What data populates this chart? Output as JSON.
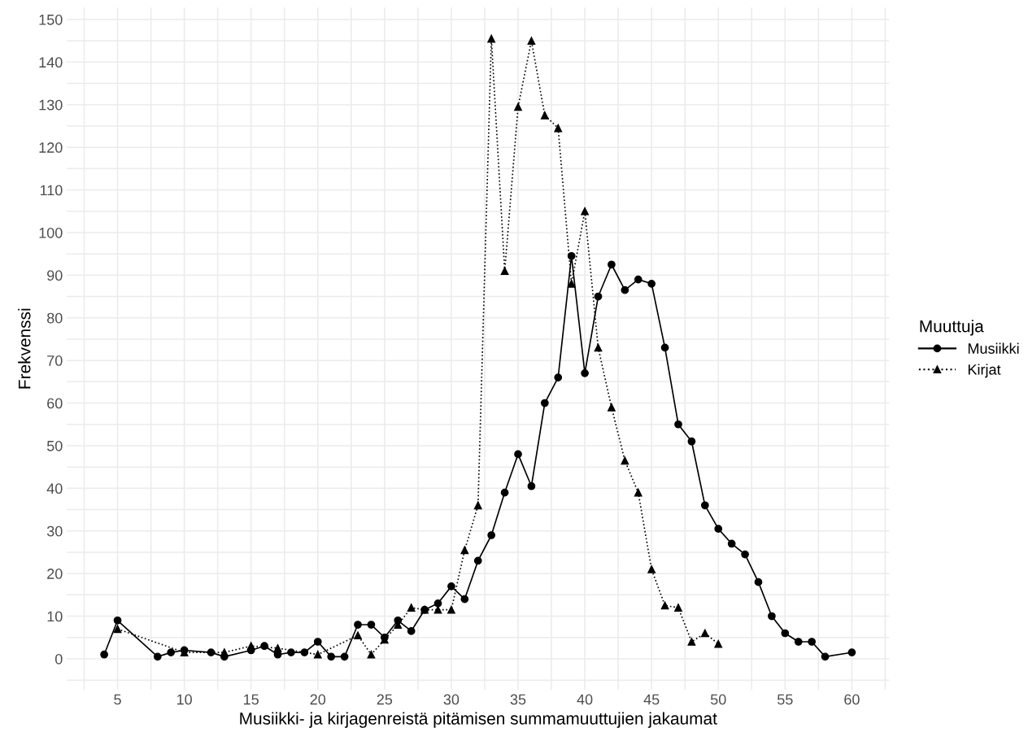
{
  "chart_data": {
    "type": "line",
    "xlabel": "Musiikki- ja kirjagenreistä pitämisen summamuuttujien jakaumat",
    "ylabel": "Frekvenssi",
    "legend_title": "Muuttuja",
    "legend": "right",
    "grid": true,
    "xlim": [
      1.2,
      62.8
    ],
    "ylim": [
      -7.3,
      152.8
    ],
    "xticks": [
      {
        "value": 2.5,
        "label": null
      },
      5,
      {
        "value": 7.5,
        "label": null
      },
      10,
      {
        "value": 12.5,
        "label": null
      },
      15,
      {
        "value": 17.5,
        "label": null
      },
      20,
      {
        "value": 22.5,
        "label": null
      },
      25,
      {
        "value": 27.5,
        "label": null
      },
      30,
      {
        "value": 32.5,
        "label": null
      },
      35,
      {
        "value": 37.5,
        "label": null
      },
      40,
      {
        "value": 42.5,
        "label": null
      },
      45,
      {
        "value": 47.5,
        "label": null
      },
      50,
      {
        "value": 52.5,
        "label": null
      },
      55,
      {
        "value": 57.5,
        "label": null
      },
      60,
      {
        "value": 62.5,
        "label": null
      }
    ],
    "yticks": [
      {
        "value": -5,
        "label": null
      },
      0,
      {
        "value": 5,
        "label": null
      },
      10,
      {
        "value": 15,
        "label": null
      },
      20,
      {
        "value": 25,
        "label": null
      },
      30,
      {
        "value": 35,
        "label": null
      },
      40,
      {
        "value": 45,
        "label": null
      },
      50,
      {
        "value": 55,
        "label": null
      },
      60,
      {
        "value": 65,
        "label": null
      },
      70,
      {
        "value": 75,
        "label": null
      },
      80,
      {
        "value": 85,
        "label": null
      },
      90,
      {
        "value": 95,
        "label": null
      },
      100,
      {
        "value": 105,
        "label": null
      },
      110,
      {
        "value": 115,
        "label": null
      },
      120,
      {
        "value": 125,
        "label": null
      },
      130,
      {
        "value": 135,
        "label": null
      },
      140,
      {
        "value": 145,
        "label": null
      },
      150
    ],
    "series": [
      {
        "name": "Musiikki",
        "color": "#000000",
        "marker": "circle",
        "line_style": "solid",
        "x": [
          4,
          5,
          8,
          9,
          10,
          12,
          13,
          15,
          16,
          17,
          18,
          19,
          20,
          21,
          22,
          23,
          24,
          25,
          26,
          27,
          28,
          29,
          30,
          31,
          32,
          33,
          34,
          35,
          36,
          37,
          38,
          39,
          40,
          41,
          42,
          43,
          44,
          45,
          46,
          47,
          48,
          49,
          50,
          51,
          52,
          53,
          54,
          55,
          56,
          57,
          58,
          60
        ],
        "values": [
          1,
          9,
          0.5,
          1.5,
          2,
          1.5,
          0.5,
          2,
          3,
          1,
          1.5,
          1.5,
          4,
          0.5,
          0.5,
          8,
          8,
          5,
          9,
          6.5,
          11.5,
          13,
          17,
          14,
          23,
          29,
          39,
          48,
          40.5,
          60,
          66,
          94.5,
          67,
          85,
          92.5,
          86.5,
          89,
          88,
          73,
          55,
          51,
          36,
          30.5,
          27,
          24.5,
          18,
          10,
          6,
          4,
          4,
          0.5,
          1.5
        ]
      },
      {
        "name": "Kirjat",
        "color": "#000000",
        "marker": "triangle",
        "line_style": "dotted",
        "x": [
          5,
          10,
          13,
          15,
          17,
          20,
          23,
          24,
          25,
          26,
          27,
          28,
          29,
          30,
          31,
          32,
          33,
          34,
          35,
          36,
          37,
          38,
          39,
          40,
          41,
          42,
          43,
          44,
          45,
          46,
          47,
          48,
          49,
          50
        ],
        "values": [
          7,
          1.5,
          1.5,
          3,
          2.5,
          1,
          5.5,
          1,
          4.5,
          8,
          12,
          11.5,
          11.5,
          11.5,
          25.5,
          36,
          145.5,
          91,
          129.5,
          145,
          127.5,
          124.5,
          88,
          105,
          73,
          59,
          46.5,
          39,
          21,
          12.5,
          12,
          4,
          6,
          3.5
        ]
      }
    ]
  }
}
